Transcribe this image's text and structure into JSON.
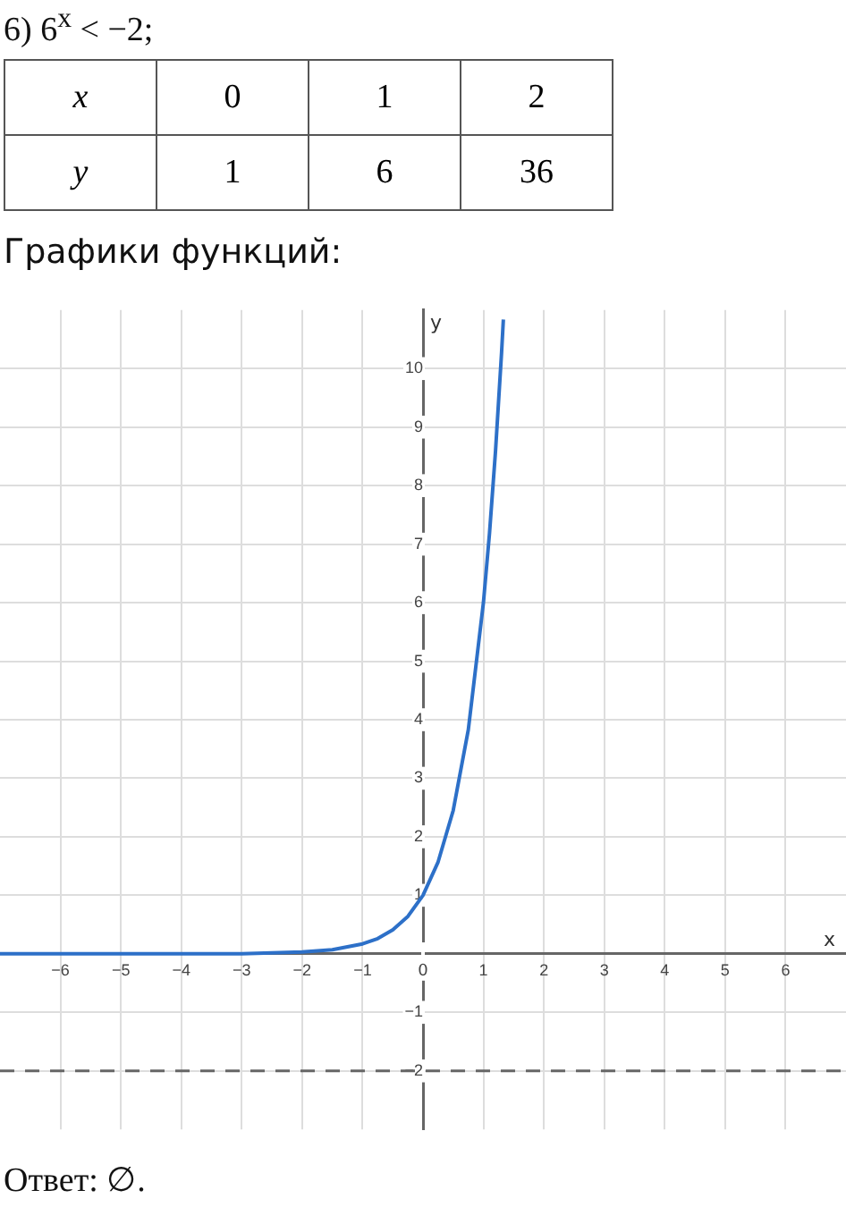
{
  "chart_data": {
    "type": "line",
    "title": "6) 6$^{x}$ < −2;",
    "subtitle": "Графики функций:",
    "xlabel": "x",
    "ylabel": "y",
    "annotations": [
      "x",
      "0",
      "1",
      "2",
      "y",
      "1",
      "6",
      "36",
      "Ответ:  ∅."
    ],
    "x": [
      -7,
      -6,
      -5,
      -4,
      -3,
      -2,
      -1.5,
      -1,
      -0.75,
      -0.5,
      -0.25,
      0,
      0.25,
      0.5,
      0.75,
      1,
      1.1,
      1.2,
      1.3,
      1.33
    ],
    "series": [
      {
        "color": "#2d70c8",
        "values": [
          0,
          0,
          0,
          0,
          0,
          0.03,
          0.07,
          0.17,
          0.26,
          0.41,
          0.64,
          1,
          1.57,
          2.45,
          3.83,
          6,
          7.18,
          8.59,
          10.27,
          10.84
        ]
      }
    ],
    "xlim": [
      -7,
      7
    ],
    "ylim": [
      -3,
      11
    ],
    "xticks": [
      -6,
      -5,
      -4,
      -3,
      -2,
      -1,
      0,
      1,
      2,
      3,
      4,
      5,
      6
    ],
    "yticks": [
      -2,
      -1,
      {
        "value": 0,
        "label": null
      },
      1,
      2,
      3,
      4,
      5,
      6,
      7,
      8,
      9,
      10
    ],
    "ref_lines": [
      {
        "axis": "y",
        "value": -2,
        "color": "#666666",
        "line_style": "dashed"
      }
    ],
    "grid": true,
    "legend": false
  }
}
